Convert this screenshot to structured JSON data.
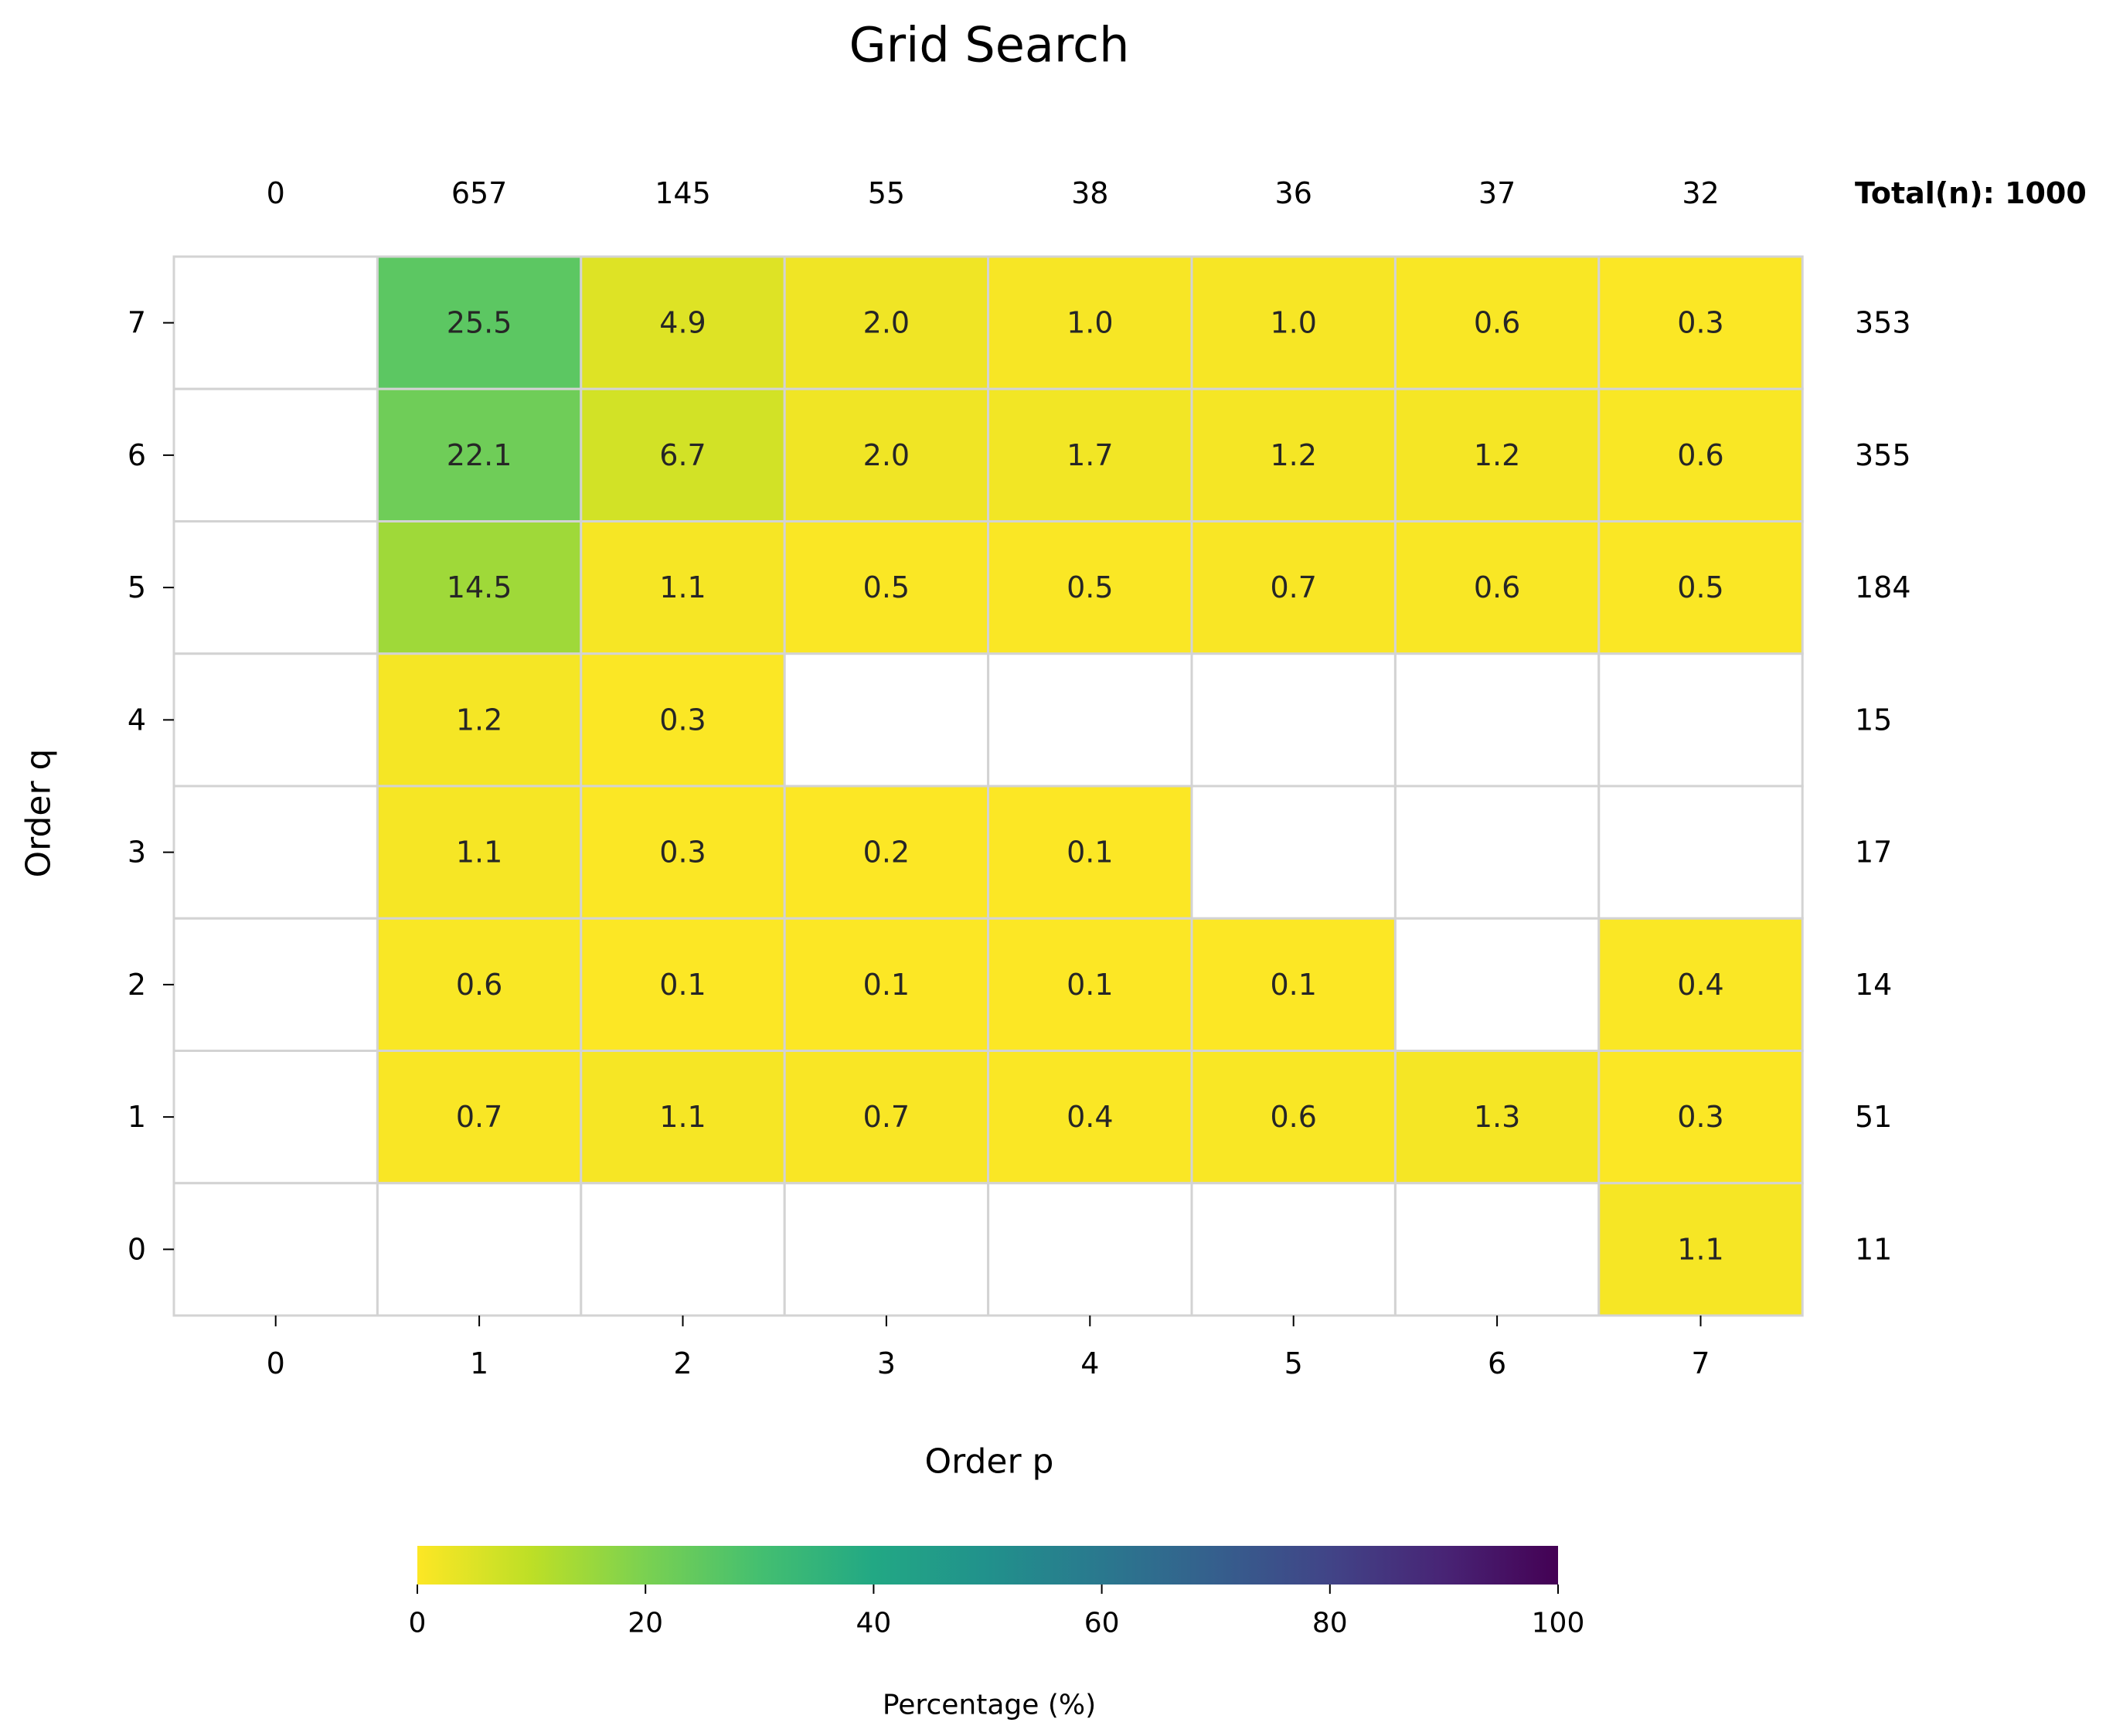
{
  "chart_data": {
    "type": "heatmap",
    "title": "Grid Search",
    "xlabel": "Order p",
    "ylabel": "Order q",
    "x": [
      "0",
      "1",
      "2",
      "3",
      "4",
      "5",
      "6",
      "7"
    ],
    "y": [
      "7",
      "6",
      "5",
      "4",
      "3",
      "2",
      "1",
      "0"
    ],
    "values": [
      [
        null,
        25.5,
        4.9,
        2.0,
        1.0,
        1.0,
        0.6,
        0.3
      ],
      [
        null,
        22.1,
        6.7,
        2.0,
        1.7,
        1.2,
        1.2,
        0.6
      ],
      [
        null,
        14.5,
        1.1,
        0.5,
        0.5,
        0.7,
        0.6,
        0.5
      ],
      [
        null,
        1.2,
        0.3,
        null,
        null,
        null,
        null,
        null
      ],
      [
        null,
        1.1,
        0.3,
        0.2,
        0.1,
        null,
        null,
        null
      ],
      [
        null,
        0.6,
        0.1,
        0.1,
        0.1,
        0.1,
        null,
        0.4
      ],
      [
        null,
        0.7,
        1.1,
        0.7,
        0.4,
        0.6,
        1.3,
        0.3
      ],
      [
        null,
        null,
        null,
        null,
        null,
        null,
        null,
        1.1
      ]
    ],
    "column_counts": [
      "0",
      "657",
      "145",
      "55",
      "38",
      "36",
      "37",
      "32"
    ],
    "row_counts": [
      "353",
      "355",
      "184",
      "15",
      "17",
      "14",
      "51",
      "11"
    ],
    "total_label": "Total(n): 1000",
    "colorbar": {
      "label": "Percentage (%)",
      "range": [
        0,
        100
      ],
      "ticks": [
        "0",
        "20",
        "40",
        "60",
        "80",
        "100"
      ],
      "colormap": "viridis_r",
      "orientation": "horizontal",
      "position": "bottom"
    },
    "colors": {
      "cell_border": "#d3d3d3",
      "empty_cell": "#ffffff",
      "cell_text": "#262626"
    },
    "grid": false
  }
}
